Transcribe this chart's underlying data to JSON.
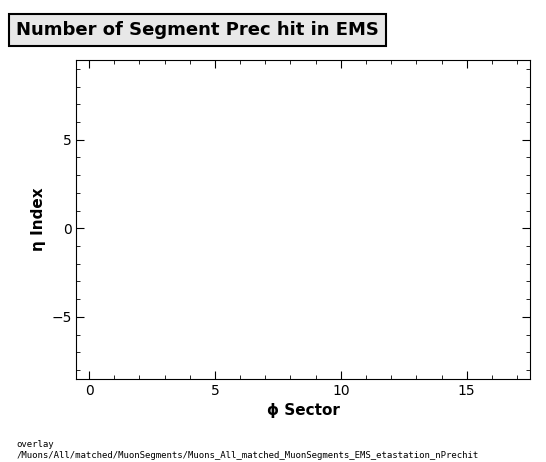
{
  "title": "Number of Segment Prec hit in EMS",
  "xlabel": "ϕ Sector",
  "ylabel": "η Index",
  "xlim": [
    -0.5,
    17.5
  ],
  "ylim": [
    -8.5,
    9.5
  ],
  "xticks": [
    0,
    5,
    10,
    15
  ],
  "yticks": [
    -5,
    0,
    5
  ],
  "background_color": "#ffffff",
  "plot_bg_color": "#ffffff",
  "title_fontsize": 13,
  "axis_label_fontsize": 11,
  "tick_fontsize": 10,
  "footer_text": "overlay\n/Muons/All/matched/MuonSegments/Muons_All_matched_MuonSegments_EMS_etastation_nPrechit",
  "footer_fontsize": 6.5,
  "title_bg_color": "#e8e8e8"
}
